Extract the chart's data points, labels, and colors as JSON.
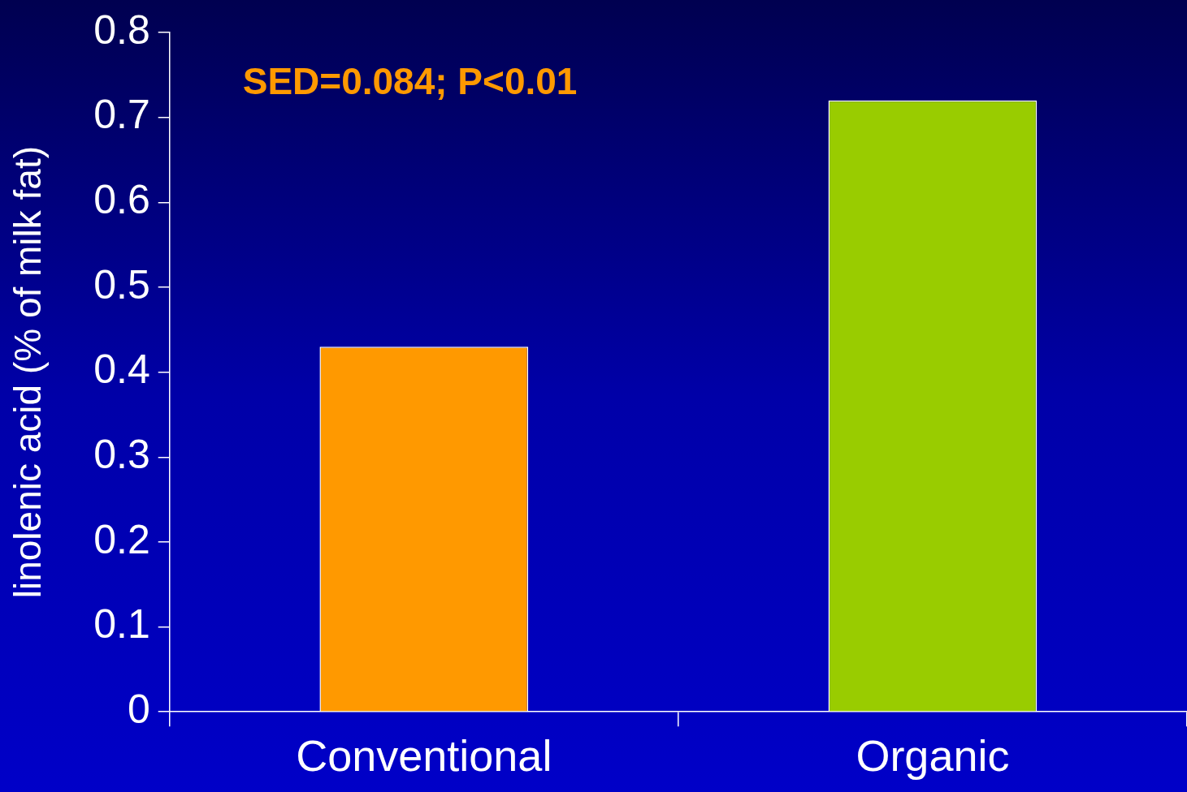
{
  "chart_data": {
    "type": "bar",
    "categories": [
      "Conventional",
      "Organic"
    ],
    "values": [
      0.43,
      0.72
    ],
    "colors": [
      "#ff9900",
      "#99cc00"
    ],
    "ylabel": "linolenic acid (% of milk fat)",
    "ylim": [
      0,
      0.8
    ],
    "yticks": [
      0,
      {
        "value": 0.1,
        "label": "0.1"
      },
      {
        "value": 0.2,
        "label": "0.2"
      },
      {
        "value": 0.3,
        "label": "0.3"
      },
      {
        "value": 0.4,
        "label": "0.4"
      },
      {
        "value": 0.5,
        "label": "0.5"
      },
      {
        "value": 0.6,
        "label": "0.6"
      },
      {
        "value": 0.7,
        "label": "0.7"
      },
      {
        "value": 0.8,
        "label": "0.8"
      }
    ],
    "annotations": [
      "SED=0.084; P<0.01"
    ],
    "grid": false,
    "legend": false
  }
}
